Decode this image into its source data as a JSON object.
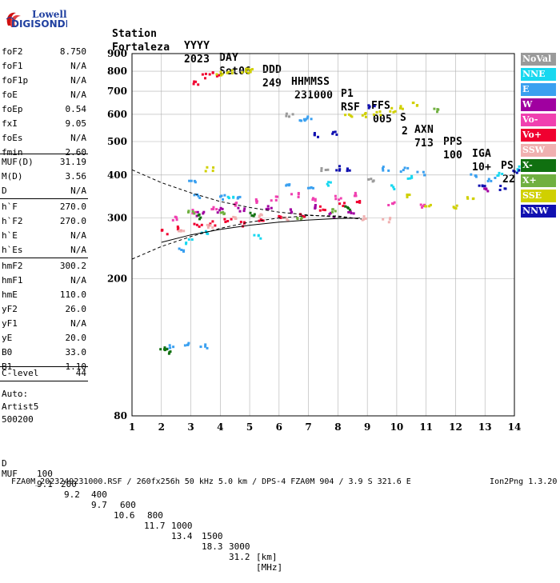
{
  "logo": {
    "line1": "Lowell",
    "line2": "DIGISONDE"
  },
  "header": {
    "labels": [
      "Station",
      "YYYY",
      "DAY",
      "DDD",
      "HHMMSS",
      "P1",
      "FFS",
      "S",
      "AXN",
      "PPS",
      "IGA",
      "PS"
    ],
    "values": [
      "Fortaleza",
      "2023",
      "Set06",
      "249",
      "231000",
      "RSF",
      "005",
      "2",
      "713",
      "100",
      "10+",
      "22"
    ]
  },
  "params": [
    {
      "name": "foF2",
      "value": "8.750"
    },
    {
      "name": "foF1",
      "value": "N/A"
    },
    {
      "name": "foF1p",
      "value": "N/A"
    },
    {
      "name": "foE",
      "value": "N/A"
    },
    {
      "name": "foEp",
      "value": "0.54"
    },
    {
      "name": "fxI",
      "value": "9.05"
    },
    {
      "name": "foEs",
      "value": "N/A"
    },
    {
      "name": "fmin",
      "value": "2.60"
    },
    {
      "name": "MUF(D)",
      "value": "31.19"
    },
    {
      "name": "M(D)",
      "value": "3.56"
    },
    {
      "name": "D",
      "value": "N/A"
    },
    {
      "name": "h`F",
      "value": "270.0"
    },
    {
      "name": "h`F2",
      "value": "270.0"
    },
    {
      "name": "h`E",
      "value": "N/A"
    },
    {
      "name": "h`Es",
      "value": "N/A"
    },
    {
      "name": "hmF2",
      "value": "300.2"
    },
    {
      "name": "hmF1",
      "value": "N/A"
    },
    {
      "name": "hmE",
      "value": "110.0"
    },
    {
      "name": "yF2",
      "value": "26.0"
    },
    {
      "name": "yF1",
      "value": "N/A"
    },
    {
      "name": "yE",
      "value": "20.0"
    },
    {
      "name": "B0",
      "value": "33.0"
    },
    {
      "name": "B1",
      "value": "1.10"
    },
    {
      "name": "C-level",
      "value": "44"
    }
  ],
  "auto": {
    "line1": "Auto:",
    "line2": "Artist5",
    "line3": "500200"
  },
  "legend": [
    {
      "label": "NoVal",
      "color": "#9a9a9a"
    },
    {
      "label": "NNE",
      "color": "#18d8f0"
    },
    {
      "label": "E",
      "color": "#3aa0f0"
    },
    {
      "label": "W",
      "color": "#a000a0"
    },
    {
      "label": "Vo-",
      "color": "#f040b0"
    },
    {
      "label": "Vo+",
      "color": "#f00030"
    },
    {
      "label": "SSW",
      "color": "#f0b0b0"
    },
    {
      "label": "X-",
      "color": "#107010"
    },
    {
      "label": "X+",
      "color": "#70b040"
    },
    {
      "label": "SSE",
      "color": "#d0d000"
    },
    {
      "label": "NNW",
      "color": "#1010b0"
    }
  ],
  "footer": {
    "d_label": "D",
    "d_values": [
      "100",
      "200",
      "400",
      "600",
      "800",
      "1000",
      "1500",
      "3000",
      "[km]"
    ],
    "muf_label": "MUF",
    "muf_values": [
      "9.1",
      "9.2",
      "9.7",
      "10.6",
      "11.7",
      "13.4",
      "18.3",
      "31.2",
      "[MHz]"
    ],
    "file_line": "FZA0M_2023249231000.RSF / 260fx256h 50 kHz 5.0 km / DPS-4 FZA0M 904 / 3.9 S 321.6 E",
    "version": "Ion2Png 1.3.20"
  },
  "chart_data": {
    "type": "scatter",
    "title": "",
    "xlabel": "",
    "ylabel": "",
    "xlim": [
      1,
      14
    ],
    "ylim": [
      80,
      900
    ],
    "x_ticks": [
      1,
      2,
      3,
      4,
      5,
      6,
      7,
      8,
      9,
      10,
      11,
      12,
      13,
      14
    ],
    "y_ticks": [
      80,
      200,
      300,
      400,
      500,
      600,
      700,
      800,
      900
    ],
    "y_scale": "log",
    "grid": true,
    "legend_position": "right",
    "series": [
      {
        "name": "E",
        "values": [
          [
            2.3,
            128
          ],
          [
            2.8,
            130
          ],
          [
            3.4,
            128
          ],
          [
            2.6,
            245
          ],
          [
            3.0,
            385
          ],
          [
            3.2,
            350
          ],
          [
            4.0,
            347
          ],
          [
            4.6,
            345
          ],
          [
            6.2,
            378
          ],
          [
            7.0,
            368
          ],
          [
            9.6,
            420
          ],
          [
            10.2,
            418
          ],
          [
            10.8,
            408
          ],
          [
            12.6,
            398
          ],
          [
            13.2,
            392
          ],
          [
            6.8,
            588
          ],
          [
            7.0,
            590
          ]
        ]
      },
      {
        "name": "NNE",
        "values": [
          [
            2.9,
            258
          ],
          [
            3.4,
            276
          ],
          [
            4.3,
            347
          ],
          [
            5.2,
            268
          ],
          [
            7.6,
            380
          ],
          [
            9.8,
            372
          ],
          [
            10.4,
            394
          ],
          [
            13.5,
            405
          ],
          [
            14.0,
            420
          ]
        ]
      },
      {
        "name": "Vo+",
        "values": [
          [
            2.1,
            275
          ],
          [
            2.6,
            282
          ],
          [
            3.2,
            288
          ],
          [
            3.7,
            292
          ],
          [
            4.2,
            296
          ],
          [
            4.8,
            290
          ],
          [
            5.3,
            300
          ],
          [
            6.0,
            305
          ],
          [
            6.7,
            310
          ],
          [
            7.4,
            322
          ],
          [
            8.1,
            330
          ],
          [
            8.6,
            336
          ],
          [
            3.1,
            745
          ],
          [
            3.5,
            780
          ],
          [
            3.8,
            790
          ]
        ]
      },
      {
        "name": "Vo-",
        "values": [
          [
            2.4,
            300
          ],
          [
            3.0,
            315
          ],
          [
            3.8,
            322
          ],
          [
            4.4,
            330
          ],
          [
            5.1,
            338
          ],
          [
            5.8,
            345
          ],
          [
            6.5,
            352
          ],
          [
            7.2,
            340
          ],
          [
            8.0,
            345
          ],
          [
            8.5,
            356
          ],
          [
            9.8,
            332
          ],
          [
            10.9,
            326
          ]
        ]
      },
      {
        "name": "W",
        "values": [
          [
            3.3,
            310
          ],
          [
            3.9,
            318
          ],
          [
            4.7,
            320
          ],
          [
            5.6,
            325
          ],
          [
            6.3,
            318
          ],
          [
            7.1,
            326
          ],
          [
            7.8,
            308
          ],
          [
            8.4,
            315
          ],
          [
            13.0,
            365
          ]
        ]
      },
      {
        "name": "SSW",
        "values": [
          [
            2.6,
            278
          ],
          [
            3.6,
            285
          ],
          [
            4.5,
            300
          ],
          [
            5.4,
            308
          ],
          [
            6.2,
            300
          ],
          [
            8.8,
            302
          ],
          [
            9.6,
            298
          ]
        ]
      },
      {
        "name": "X-",
        "values": [
          [
            2.0,
            126
          ],
          [
            2.2,
            124
          ],
          [
            3.2,
            305
          ],
          [
            5.0,
            308
          ],
          [
            8.3,
            324
          ]
        ]
      },
      {
        "name": "X+",
        "values": [
          [
            3.0,
            315
          ],
          [
            4.1,
            312
          ],
          [
            6.6,
            304
          ],
          [
            7.9,
            318
          ],
          [
            11.3,
            620
          ]
        ]
      },
      {
        "name": "SSE",
        "values": [
          [
            3.6,
            418
          ],
          [
            3.9,
            790
          ],
          [
            4.3,
            800
          ],
          [
            4.8,
            810
          ],
          [
            5.0,
            815
          ],
          [
            8.3,
            596
          ],
          [
            8.9,
            600
          ],
          [
            9.3,
            606
          ],
          [
            9.8,
            620
          ],
          [
            10.2,
            630
          ],
          [
            10.6,
            648
          ],
          [
            10.3,
            352
          ],
          [
            11.0,
            332
          ],
          [
            11.9,
            325
          ],
          [
            12.5,
            345
          ]
        ]
      },
      {
        "name": "NNW",
        "values": [
          [
            7.9,
            421
          ],
          [
            8.4,
            418
          ],
          [
            7.2,
            525
          ],
          [
            7.9,
            530
          ],
          [
            9.1,
            640
          ],
          [
            12.9,
            372
          ],
          [
            13.6,
            370
          ],
          [
            14.0,
            410
          ]
        ]
      },
      {
        "name": "NoVal",
        "values": [
          [
            6.3,
            598
          ],
          [
            7.5,
            420
          ],
          [
            9.1,
            390
          ]
        ]
      }
    ],
    "fitted_curves": {
      "lower_dashed": [
        [
          1.0,
          228
        ],
        [
          2.0,
          248
        ],
        [
          3.0,
          265
        ],
        [
          4.0,
          280
        ],
        [
          5.0,
          292
        ],
        [
          6.0,
          300
        ],
        [
          7.0,
          305
        ],
        [
          8.0,
          304
        ],
        [
          8.8,
          298
        ]
      ],
      "upper_dashed": [
        [
          1.0,
          414
        ],
        [
          2.0,
          380
        ],
        [
          3.0,
          355
        ],
        [
          4.0,
          335
        ],
        [
          5.0,
          322
        ],
        [
          6.0,
          312
        ],
        [
          7.0,
          306
        ],
        [
          8.0,
          302
        ],
        [
          8.8,
          298
        ]
      ],
      "profile_solid": [
        [
          2.0,
          255
        ],
        [
          3.0,
          268
        ],
        [
          4.0,
          278
        ],
        [
          5.0,
          286
        ],
        [
          6.0,
          292
        ],
        [
          7.0,
          296
        ],
        [
          8.0,
          299
        ],
        [
          8.75,
          300
        ]
      ]
    }
  }
}
